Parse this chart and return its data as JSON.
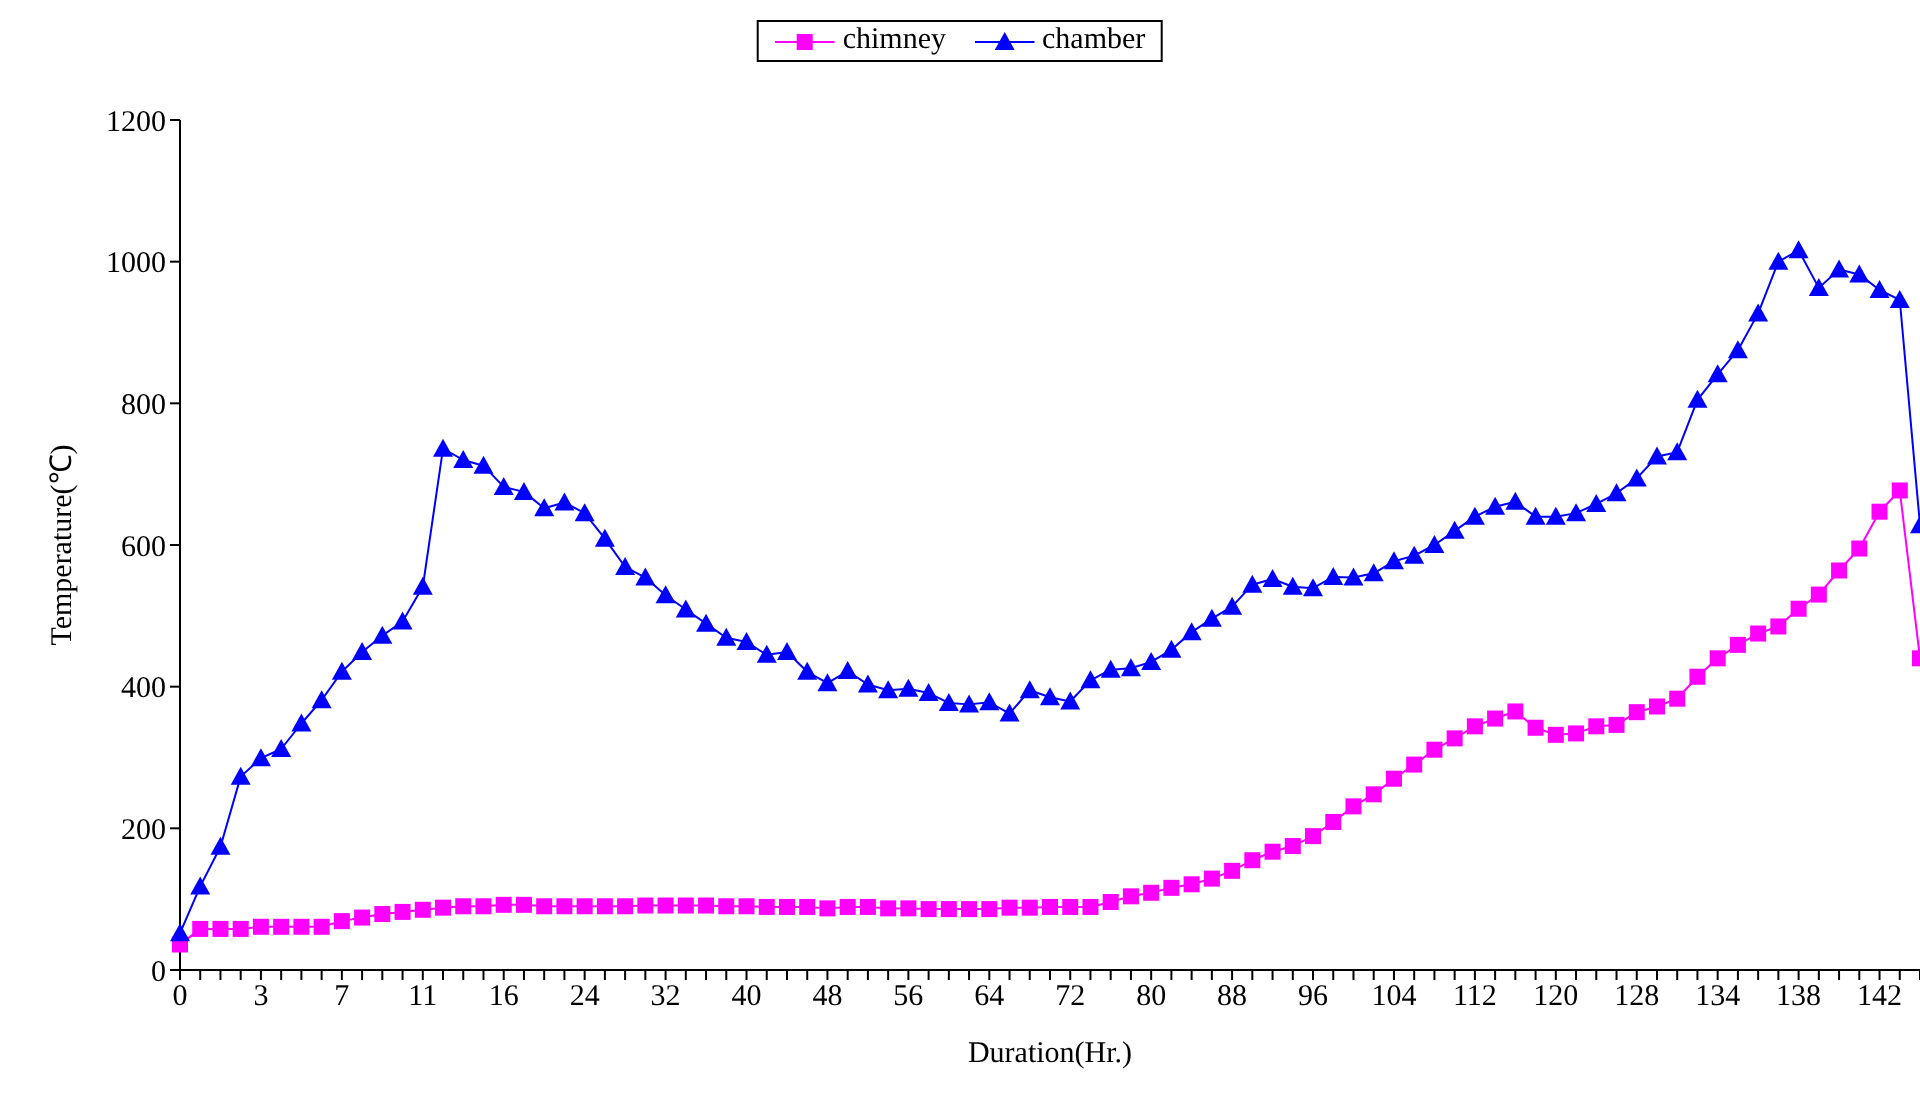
{
  "chart_data": {
    "type": "line",
    "xlabel": "Duration(Hr.)",
    "ylabel": "Temperature(℃)",
    "categories": [
      "0",
      null,
      null,
      null,
      "3",
      null,
      null,
      null,
      "7",
      null,
      null,
      null,
      "11",
      null,
      null,
      null,
      "16",
      null,
      null,
      null,
      "24",
      null,
      null,
      null,
      "32",
      null,
      null,
      null,
      "40",
      null,
      null,
      null,
      "48",
      null,
      null,
      null,
      "56",
      null,
      null,
      null,
      "64",
      null,
      null,
      null,
      "72",
      null,
      null,
      null,
      "80",
      null,
      null,
      null,
      "88",
      null,
      null,
      null,
      "96",
      null,
      null,
      null,
      "104",
      null,
      null,
      null,
      "112",
      null,
      null,
      null,
      "120",
      null,
      null,
      null,
      "128",
      null,
      null,
      null,
      "134",
      null,
      null,
      null,
      "138",
      null,
      null,
      null,
      "142",
      null,
      null
    ],
    "series": [
      {
        "name": "chimney",
        "color": "#ff00ff",
        "marker": "square",
        "values": [
          36,
          58,
          58,
          58,
          61,
          61,
          61,
          61,
          69,
          74,
          79,
          82,
          85,
          88,
          90,
          90,
          92,
          92,
          90,
          90,
          90,
          90,
          90,
          91,
          91,
          91,
          91,
          90,
          90,
          89,
          89,
          89,
          87,
          89,
          89,
          87,
          87,
          86,
          86,
          86,
          86,
          88,
          88,
          89,
          89,
          89,
          96,
          104,
          109,
          116,
          121,
          129,
          140,
          155,
          167,
          175,
          189,
          209,
          231,
          248,
          270,
          290,
          311,
          327,
          344,
          355,
          365,
          342,
          332,
          334,
          344,
          346,
          364,
          372,
          383,
          414,
          440,
          459,
          475,
          485,
          510,
          530,
          564,
          595,
          647,
          677,
          440
        ]
      },
      {
        "name": "chamber",
        "color": "#0000ff",
        "marker": "triangle",
        "values": [
          52,
          118,
          174,
          273,
          299,
          312,
          348,
          381,
          421,
          449,
          472,
          492,
          541,
          736,
          720,
          712,
          682,
          675,
          652,
          660,
          645,
          609,
          569,
          554,
          529,
          509,
          489,
          469,
          463,
          445,
          449,
          421,
          405,
          422,
          403,
          395,
          397,
          391,
          377,
          375,
          378,
          362,
          395,
          385,
          379,
          409,
          424,
          426,
          435,
          452,
          477,
          496,
          513,
          544,
          552,
          541,
          539,
          555,
          554,
          560,
          577,
          585,
          600,
          620,
          640,
          654,
          661,
          640,
          640,
          645,
          658,
          673,
          694,
          725,
          731,
          805,
          841,
          875,
          927,
          1000,
          1016,
          963,
          989,
          982,
          960,
          946,
          628
        ]
      }
    ],
    "ylim": [
      0,
      1200
    ],
    "yticks": [
      0,
      200,
      400,
      600,
      800,
      1000,
      1200
    ],
    "grid": false,
    "legend": "top",
    "line_style": "solid"
  }
}
